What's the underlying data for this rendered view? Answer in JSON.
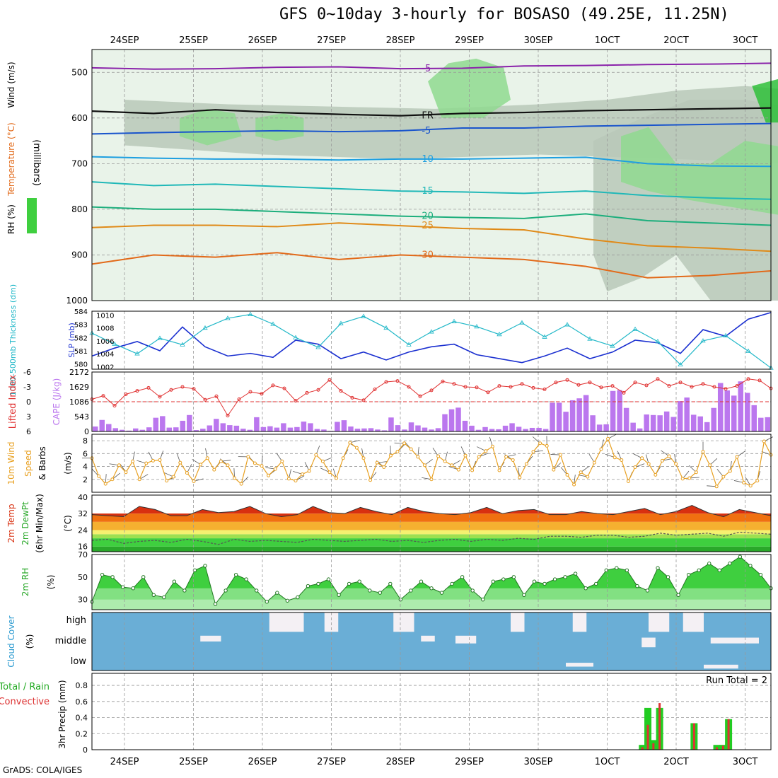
{
  "title": "GFS 0~10day 3-hourly for BOSASO (49.25E, 11.25N)",
  "credit": "GrADS: COLA/IGES",
  "date_labels": [
    "24SEP",
    "25SEP",
    "26SEP",
    "27SEP",
    "28SEP",
    "29SEP",
    "30SEP",
    "1OCT",
    "2OCT",
    "3OCT"
  ],
  "colors": {
    "grid": "#999999",
    "rh_dark": "#2fbf3a",
    "rh_mid": "#8fd98f",
    "rh_light": "#d8ecd8",
    "rh_gray": "#b8c8b8",
    "cloud": "#6aaed6",
    "cloud_clear": "#f4f0f4",
    "precip_total": "#22cc22",
    "precip_conv": "#dd3333"
  },
  "chart_data": [
    {
      "type": "heatmap",
      "panel": "upper-air",
      "ylabel": "millibars",
      "side_labels": [
        "RH (%)",
        "Temperature (°C)",
        "Wind (m/s)"
      ],
      "yticks": [
        500,
        600,
        700,
        800,
        900,
        1000
      ],
      "ylim": [
        450,
        1000
      ],
      "temperature_isotherms": [
        {
          "label": "-5",
          "p": [
            490,
            493,
            492,
            489,
            488,
            492,
            491,
            486,
            485,
            483,
            482,
            480
          ]
        },
        {
          "label": "FR",
          "p": [
            585,
            590,
            582,
            588,
            592,
            595,
            590,
            588,
            584,
            582,
            580,
            578
          ]
        },
        {
          "label": "-5 (lower)",
          "p": [
            635,
            632,
            630,
            628,
            630,
            628,
            622,
            622,
            618,
            616,
            614,
            612
          ]
        },
        {
          "label": "10",
          "p": [
            685,
            688,
            690,
            690,
            692,
            690,
            690,
            688,
            686,
            700,
            705,
            706
          ]
        },
        {
          "label": "15",
          "p": [
            740,
            748,
            745,
            750,
            755,
            760,
            762,
            765,
            760,
            770,
            775,
            778
          ]
        },
        {
          "label": "20",
          "p": [
            795,
            800,
            800,
            805,
            810,
            815,
            818,
            820,
            810,
            825,
            830,
            835
          ]
        },
        {
          "label": "25",
          "p": [
            840,
            835,
            835,
            838,
            830,
            836,
            842,
            845,
            865,
            880,
            885,
            892
          ]
        },
        {
          "label": "30",
          "p": [
            920,
            900,
            905,
            895,
            910,
            900,
            905,
            910,
            925,
            950,
            945,
            935
          ]
        }
      ]
    },
    {
      "type": "line",
      "panel": "thickness-slp",
      "ylabel_left": "1000-500mb Thickness (dm)",
      "ylabel_right": "SLP (mb)",
      "left_ticks": [
        580,
        581,
        582,
        583,
        584
      ],
      "right_ticks": [
        1002,
        1004,
        1006,
        1008,
        1010
      ],
      "series": [
        {
          "name": "Thickness",
          "values": [
            580.6,
            581.2,
            581.7,
            581.0,
            582.8,
            581.3,
            580.6,
            580.8,
            580.5,
            581.8,
            581.5,
            580.4,
            580.9,
            580.3,
            580.9,
            581.3,
            581.5,
            580.7,
            580.4,
            580.1,
            580.6,
            581.2,
            580.4,
            580.9,
            581.8,
            581.6,
            580.8,
            582.6,
            582.1,
            583.4,
            583.9
          ]
        },
        {
          "name": "SLP",
          "values": [
            1007.2,
            1005.5,
            1004.0,
            1006.4,
            1005.4,
            1008.0,
            1009.5,
            1010.1,
            1008.6,
            1006.5,
            1005.0,
            1008.7,
            1009.8,
            1008.0,
            1005.4,
            1007.4,
            1009.0,
            1008.2,
            1007.0,
            1008.8,
            1006.6,
            1008.5,
            1006.3,
            1005.2,
            1007.8,
            1005.9,
            1002.3,
            1006.0,
            1006.8,
            1004.4,
            1001.8
          ]
        }
      ]
    },
    {
      "type": "bar",
      "panel": "cape-li",
      "ylabel_left": "Lifted Index",
      "ylabel_right": "CAPE (J/kg)",
      "left_ticks": [
        -6,
        -3,
        0,
        3,
        6
      ],
      "right_ticks": [
        0,
        543,
        1086,
        1629,
        2172
      ],
      "cape_values": [
        180,
        420,
        270,
        120,
        60,
        30,
        110,
        60,
        150,
        500,
        560,
        140,
        150,
        390,
        600,
        50,
        100,
        220,
        460,
        300,
        230,
        210,
        100,
        60,
        520,
        160,
        190,
        140,
        300,
        140,
        160,
        360,
        300,
        90,
        70,
        20,
        350,
        410,
        180,
        100,
        110,
        120,
        70,
        40,
        510,
        230,
        70,
        330,
        220,
        140,
        70,
        120,
        630,
        810,
        870,
        390,
        210,
        60,
        160,
        90,
        80,
        210,
        300,
        170,
        90,
        130,
        130,
        90,
        1050,
        1050,
        720,
        1140,
        1210,
        1330,
        590,
        250,
        260,
        1480,
        1510,
        860,
        320,
        110,
        620,
        600,
        590,
        730,
        530,
        1110,
        1240,
        610,
        550,
        340,
        860,
        1770,
        1500,
        1310,
        1830,
        1410,
        960,
        500,
        520
      ]
    },
    {
      "type": "line",
      "panel": "wind10m",
      "ylabel": "10m Wind Speed & Barbs (m/s)",
      "yticks": [
        2,
        4,
        6,
        8
      ],
      "series": [
        {
          "name": "10m Wind",
          "values": [
            5.3,
            2.5,
            1.3,
            2.0,
            4.2,
            3.1,
            4.8,
            2.0,
            4.5,
            4.9,
            5.0,
            1.8,
            2.4,
            4.6,
            3.0,
            1.7,
            4.3,
            5.3,
            3.5,
            4.8,
            4.2,
            2.2,
            1.3,
            5.5,
            4.5,
            4.1,
            2.6,
            3.6,
            4.8,
            2.1,
            1.8,
            2.8,
            3.3,
            5.8,
            4.8,
            3.1,
            2.2,
            5.3,
            7.7,
            6.9,
            5.3,
            1.9,
            4.6,
            3.9,
            5.7,
            6.3,
            7.6,
            6.7,
            5.5,
            4.2,
            2.0,
            5.6,
            4.8,
            4.2,
            3.5,
            5.7,
            3.4,
            5.5,
            6.4,
            7.1,
            3.4,
            5.5,
            5.0,
            2.3,
            4.4,
            6.3,
            7.6,
            7.2,
            3.5,
            5.8,
            2.7,
            1.2,
            3.1,
            2.4,
            4.6,
            6.7,
            8.3,
            5.4,
            5.0,
            1.7,
            3.9,
            5.3,
            4.4,
            2.7,
            4.9,
            5.6,
            4.4,
            2.1,
            2.2,
            3.1,
            6.3,
            4.2,
            0.9,
            2.4,
            3.3,
            5.5,
            1.5,
            1.0,
            1.8,
            7.9,
            5.8
          ]
        }
      ]
    },
    {
      "type": "area",
      "panel": "temp2m",
      "ylabel": "2m Temp / 2m DewPt (6hr Min/Max) (°C)",
      "yticks": [
        16,
        24,
        32,
        40
      ],
      "series": [
        {
          "name": "2m Temp",
          "values": [
            31.5,
            31.0,
            30.5,
            35.5,
            34.0,
            31.0,
            31.0,
            34.0,
            32.5,
            33.0,
            35.5,
            32.0,
            30.5,
            31.5,
            35.5,
            32.5,
            32.0,
            35.0,
            33.0,
            31.5,
            35.0,
            33.0,
            32.0,
            31.5,
            32.5,
            35.0,
            32.0,
            33.5,
            34.0,
            31.5,
            31.5,
            33.0,
            32.0,
            31.5,
            33.0,
            34.5,
            31.5,
            33.0,
            36.0,
            32.5,
            30.5,
            34.0,
            32.5,
            31.0
          ]
        },
        {
          "name": "2m DewPt",
          "values": [
            19.0,
            19.5,
            17.5,
            18.5,
            19.0,
            18.0,
            19.5,
            18.5,
            17.0,
            19.5,
            18.5,
            19.0,
            18.5,
            18.0,
            19.5,
            19.0,
            18.5,
            19.0,
            19.5,
            18.5,
            19.0,
            18.0,
            19.0,
            19.5,
            18.5,
            19.5,
            19.0,
            20.0,
            19.5,
            21.0,
            21.0,
            20.5,
            21.5,
            21.5,
            20.5,
            21.0,
            22.5,
            21.5,
            22.0,
            22.5,
            21.0,
            23.0,
            22.5,
            22.0
          ]
        }
      ]
    },
    {
      "type": "area",
      "panel": "rh2m",
      "ylabel": "2m RH (%)",
      "yticks": [
        30,
        50,
        70
      ],
      "series": [
        {
          "name": "2m RH",
          "values": [
            28,
            52,
            50,
            41,
            40,
            50,
            34,
            32,
            46,
            38,
            56,
            60,
            26,
            38,
            52,
            48,
            38,
            28,
            36,
            29,
            32,
            42,
            44,
            48,
            34,
            44,
            46,
            38,
            36,
            44,
            30,
            38,
            46,
            40,
            36,
            44,
            50,
            38,
            30,
            46,
            48,
            50,
            34,
            46,
            44,
            48,
            50,
            53,
            40,
            44,
            56,
            58,
            56,
            42,
            38,
            58,
            50,
            34,
            52,
            56,
            62,
            56,
            62,
            68,
            60,
            52,
            40
          ]
        }
      ]
    },
    {
      "type": "heatmap",
      "panel": "cloud",
      "ylabel": "Cloud Cover (%)",
      "levels": [
        "high",
        "middle",
        "low"
      ]
    },
    {
      "type": "bar",
      "panel": "precip",
      "ylabel": "3hr Precip (mm)",
      "legend": [
        "Total / Rain",
        "Convective"
      ],
      "run_total": "Run Total = 2",
      "yticks": [
        0,
        0.2,
        0.4,
        0.6,
        0.8
      ],
      "bars": [
        {
          "day": 7.51,
          "total": 0.06,
          "conv": 0.03
        },
        {
          "day": 7.59,
          "total": 0.52,
          "conv": 0.31
        },
        {
          "day": 7.67,
          "total": 0.12,
          "conv": 0.08
        },
        {
          "day": 7.76,
          "total": 0.52,
          "conv": 0.58
        },
        {
          "day": 8.26,
          "total": 0.33,
          "conv": 0.33
        },
        {
          "day": 8.59,
          "total": 0.06,
          "conv": 0.03
        },
        {
          "day": 8.68,
          "total": 0.06,
          "conv": 0.05
        },
        {
          "day": 8.76,
          "total": 0.38,
          "conv": 0.38
        }
      ]
    }
  ]
}
